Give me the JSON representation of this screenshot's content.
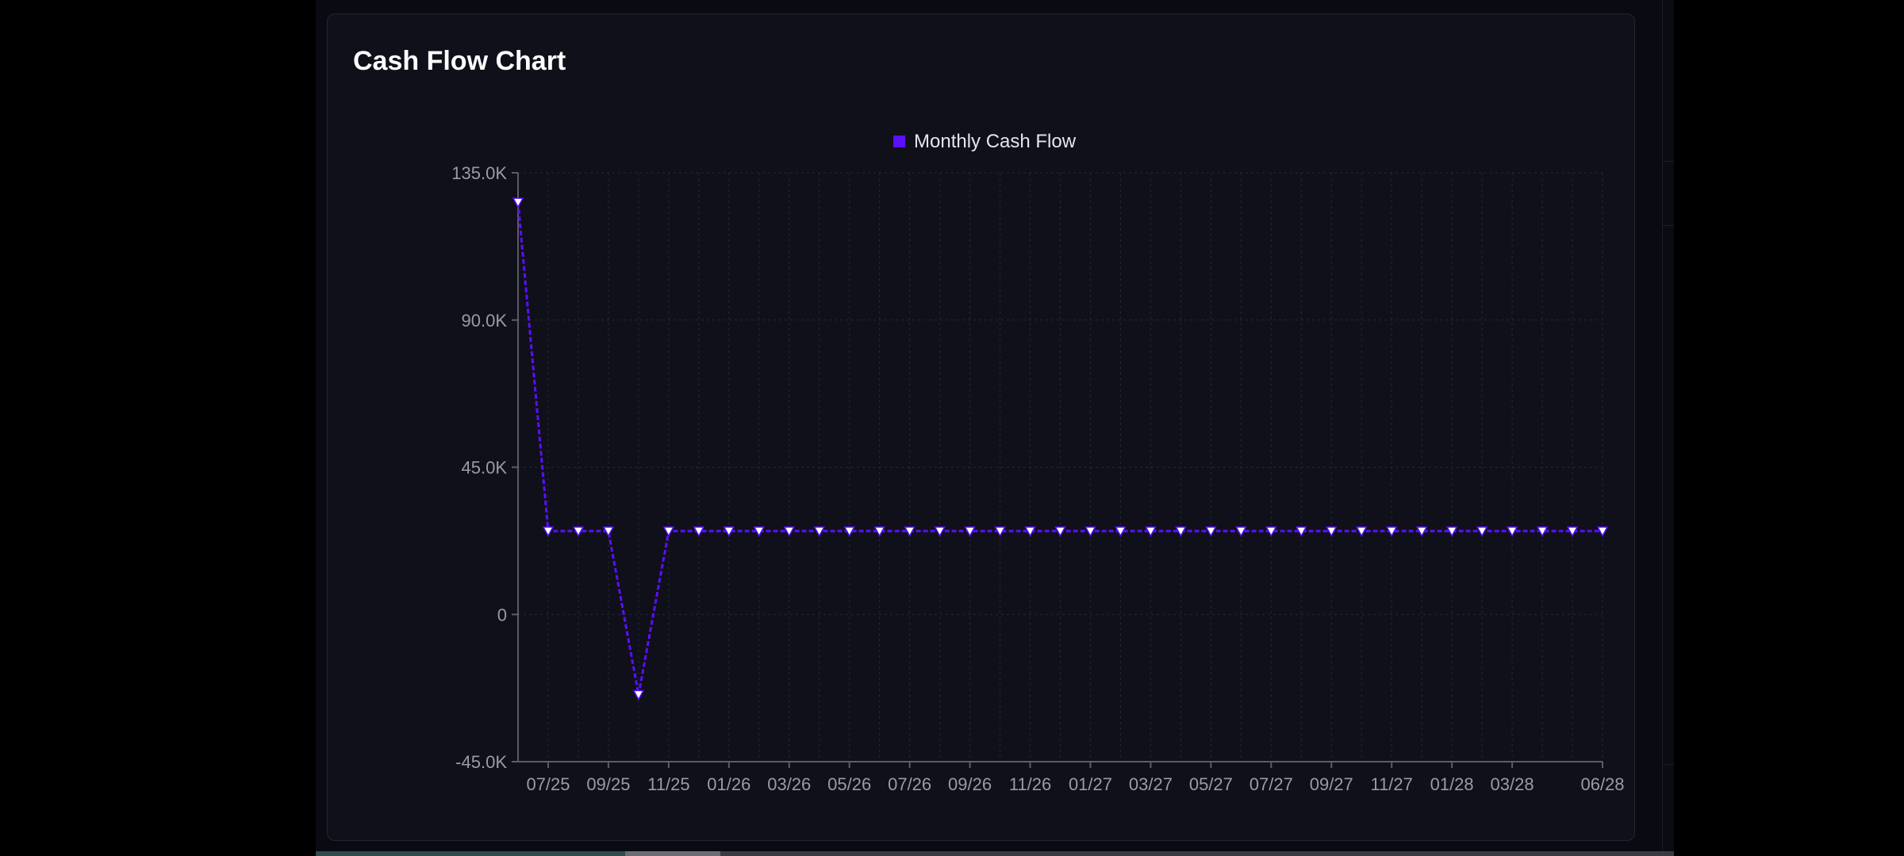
{
  "card": {
    "title": "Cash Flow Chart"
  },
  "chart_data": {
    "type": "line",
    "title": "",
    "xlabel": "",
    "ylabel": "",
    "legend": {
      "position": "top-center",
      "entries": [
        "Monthly Cash Flow"
      ]
    },
    "grid": true,
    "ylim": [
      -45000,
      135000
    ],
    "y_ticks": [
      -45000,
      0,
      45000,
      90000,
      135000
    ],
    "y_tick_labels": [
      "-45.0K",
      "0",
      "45.0K",
      "90.0K",
      "135.0K"
    ],
    "x_tick_labels": [
      "07/25",
      "09/25",
      "11/25",
      "01/26",
      "03/26",
      "05/26",
      "07/26",
      "09/26",
      "11/26",
      "01/27",
      "03/27",
      "05/27",
      "07/27",
      "09/27",
      "11/27",
      "01/28",
      "03/28",
      "06/28"
    ],
    "x_tick_indices": [
      1,
      3,
      5,
      7,
      9,
      11,
      13,
      15,
      17,
      19,
      21,
      23,
      25,
      27,
      29,
      31,
      33,
      36
    ],
    "series": [
      {
        "name": "Monthly Cash Flow",
        "color": "#5b0fff",
        "values": [
          126000,
          25500,
          25500,
          25500,
          -24500,
          25500,
          25500,
          25500,
          25500,
          25500,
          25500,
          25500,
          25500,
          25500,
          25500,
          25500,
          25500,
          25500,
          25500,
          25500,
          25500,
          25500,
          25500,
          25500,
          25500,
          25500,
          25500,
          25500,
          25500,
          25500,
          25500,
          25500,
          25500,
          25500,
          25500,
          25500,
          25500
        ]
      }
    ],
    "colors": {
      "axis": "#5a5c66",
      "grid": "#262833",
      "tick_label": "#9a9ba4",
      "legend_text": "#e6e6ea",
      "marker_fill": "#ffffff"
    }
  }
}
